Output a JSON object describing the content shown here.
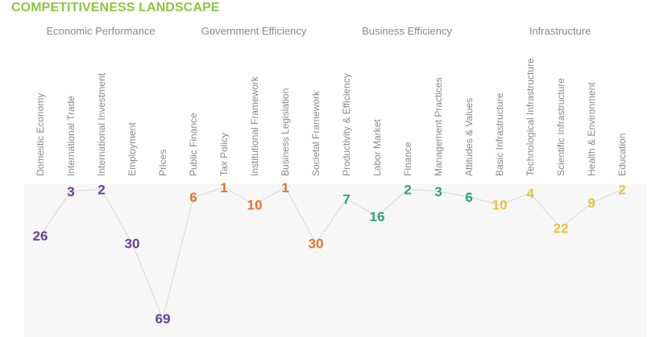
{
  "title": "COMPETITIVENESS LANDSCAPE",
  "chart_data": {
    "type": "line",
    "x_note": "categories grouped into four factor groups",
    "ylim": [
      1,
      69
    ],
    "y_inverted": true,
    "groups": [
      {
        "name": "Economic Performance",
        "color": "#6a3d9a",
        "categories": [
          "Domestic Economy",
          "International Trade",
          "International Investment",
          "Employment",
          "Prices"
        ],
        "values": [
          26,
          3,
          2,
          30,
          69
        ]
      },
      {
        "name": "Government Efficiency",
        "color": "#e8702a",
        "categories": [
          "Public Finance",
          "Tax Policy",
          "Institutional Framework",
          "Business Legislation",
          "Societal Framework"
        ],
        "values": [
          6,
          1,
          10,
          1,
          30
        ]
      },
      {
        "name": "Business Efficiency",
        "color": "#2aa37a",
        "categories": [
          "Productivity & Efficiency",
          "Labor Market",
          "Finance",
          "Management Practices",
          "Attitudes & Values"
        ],
        "values": [
          7,
          16,
          2,
          3,
          6
        ]
      },
      {
        "name": "Infrastructure",
        "color": "#e8c23a",
        "categories": [
          "Basic Infrastructure",
          "Technological Infrastructure",
          "Scientific Infrastructure",
          "Health & Environment",
          "Education"
        ],
        "values": [
          10,
          4,
          22,
          9,
          2
        ]
      }
    ],
    "line_color": "#dcdcdc"
  }
}
